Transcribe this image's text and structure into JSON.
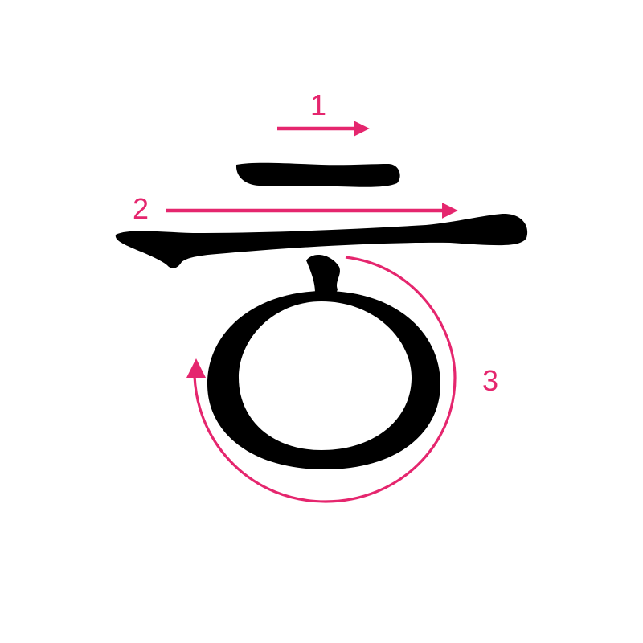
{
  "glyph": {
    "character": "ㅎ",
    "ink_color": "#000000"
  },
  "strokes": [
    {
      "order": "1",
      "direction": "left-to-right",
      "shape": "short horizontal"
    },
    {
      "order": "2",
      "direction": "left-to-right",
      "shape": "long horizontal"
    },
    {
      "order": "3",
      "direction": "counter-clockwise",
      "shape": "circle"
    }
  ],
  "annotation": {
    "arrow_color": "#e5266e"
  }
}
